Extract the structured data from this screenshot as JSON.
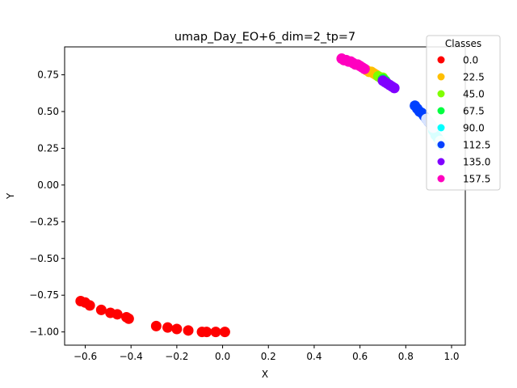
{
  "chart_data": {
    "type": "scatter",
    "title": "umap_Day_EO+6_dim=2_tp=7",
    "xlabel": "X",
    "ylabel": "Y",
    "xlim": [
      -0.69,
      1.06
    ],
    "ylim": [
      -1.09,
      0.94
    ],
    "x_ticks": [
      -0.6,
      -0.4,
      -0.2,
      0.0,
      0.2,
      0.4,
      0.6,
      0.8,
      1.0
    ],
    "x_tick_labels": [
      "−0.6",
      "−0.4",
      "−0.2",
      "0.0",
      "0.2",
      "0.4",
      "0.6",
      "0.8",
      "1.0"
    ],
    "y_ticks": [
      -1.0,
      -0.75,
      -0.5,
      -0.25,
      0.0,
      0.25,
      0.5,
      0.75
    ],
    "y_tick_labels": [
      "−1.00",
      "−0.75",
      "−0.50",
      "−0.25",
      "0.00",
      "0.25",
      "0.50",
      "0.75"
    ],
    "grid": false,
    "legend": {
      "title": "Classes",
      "placement": "top-right, outside"
    },
    "series": [
      {
        "name": "0.0",
        "color": "#ff0000",
        "x": [
          -0.62,
          -0.6,
          -0.58,
          -0.53,
          -0.49,
          -0.46,
          -0.42,
          -0.41,
          -0.29,
          -0.24,
          -0.2,
          -0.15,
          -0.09,
          -0.07,
          -0.03,
          0.01
        ],
        "y": [
          -0.79,
          -0.8,
          -0.82,
          -0.85,
          -0.87,
          -0.88,
          -0.9,
          -0.91,
          -0.96,
          -0.97,
          -0.98,
          -0.99,
          -1.0,
          -1.0,
          -1.0,
          -1.0
        ]
      },
      {
        "name": "22.5",
        "color": "#ffbf00",
        "x": [
          0.63,
          0.64,
          0.65,
          0.66,
          0.67
        ],
        "y": [
          0.78,
          0.77,
          0.77,
          0.76,
          0.75
        ]
      },
      {
        "name": "45.0",
        "color": "#80ff00",
        "x": [
          0.68,
          0.69,
          0.7
        ],
        "y": [
          0.74,
          0.73,
          0.73
        ]
      },
      {
        "name": "67.5",
        "color": "#00ff40",
        "x": [
          0.7,
          0.71
        ],
        "y": [
          0.72,
          0.71
        ]
      },
      {
        "name": "90.0",
        "color": "#00ffff",
        "x": [
          0.92,
          0.93,
          0.94,
          0.95,
          0.96
        ],
        "y": [
          0.37,
          0.34,
          0.32,
          0.29,
          0.27
        ]
      },
      {
        "name": "112.5",
        "color": "#0040ff",
        "x": [
          0.84,
          0.85,
          0.86,
          0.87,
          0.88,
          0.89,
          0.9,
          0.91
        ],
        "y": [
          0.54,
          0.52,
          0.5,
          0.49,
          0.47,
          0.45,
          0.43,
          0.41
        ]
      },
      {
        "name": "135.0",
        "color": "#8000ff",
        "x": [
          0.7,
          0.71,
          0.72,
          0.73,
          0.74,
          0.75
        ],
        "y": [
          0.71,
          0.7,
          0.69,
          0.68,
          0.67,
          0.66
        ]
      },
      {
        "name": "157.5",
        "color": "#ff00bf",
        "x": [
          0.52,
          0.53,
          0.54,
          0.55,
          0.56,
          0.57,
          0.58,
          0.59,
          0.6,
          0.61,
          0.62
        ],
        "y": [
          0.86,
          0.85,
          0.85,
          0.84,
          0.84,
          0.83,
          0.82,
          0.82,
          0.81,
          0.8,
          0.79
        ]
      }
    ],
    "overlay_series": [
      {
        "color": "#d8e4ff",
        "x": [
          0.89,
          0.9,
          0.91,
          0.92
        ],
        "y": [
          0.45,
          0.43,
          0.41,
          0.39
        ]
      },
      {
        "color": "#c8fff0",
        "x": [
          0.95,
          0.96,
          0.97
        ],
        "y": [
          0.3,
          0.28,
          0.27
        ]
      }
    ]
  }
}
